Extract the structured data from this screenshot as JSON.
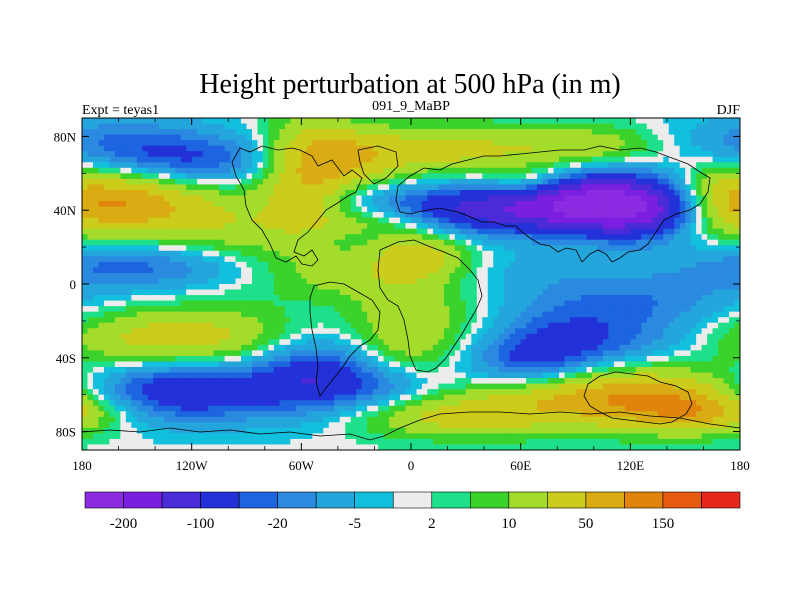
{
  "chart_data": {
    "type": "heatmap",
    "title": "Height perturbation at 500 hPa (in m)",
    "left_label": "Expt = teyas1",
    "center_label": "091_9_MaBP",
    "right_label": "DJF",
    "x_range": [
      -180,
      180
    ],
    "y_range": [
      -90,
      90
    ],
    "x_ticks": [
      {
        "value": -180,
        "label": "180"
      },
      {
        "value": -120,
        "label": "120W"
      },
      {
        "value": -60,
        "label": "60W"
      },
      {
        "value": 0,
        "label": "0"
      },
      {
        "value": 60,
        "label": "60E"
      },
      {
        "value": 120,
        "label": "120E"
      },
      {
        "value": 180,
        "label": "180"
      }
    ],
    "y_ticks": [
      {
        "value": 80,
        "label": "80N"
      },
      {
        "value": 40,
        "label": "40N"
      },
      {
        "value": 0,
        "label": "0"
      },
      {
        "value": -40,
        "label": "40S"
      },
      {
        "value": -80,
        "label": "80S"
      }
    ],
    "colorbar": {
      "bin_colors": [
        "#8a2be2",
        "#7a1ee0",
        "#4b2bd8",
        "#2331d8",
        "#1c64e0",
        "#2a8ae0",
        "#24a6dc",
        "#12c0de",
        "#ececec",
        "#1ee08a",
        "#3cd22c",
        "#a4dc2c",
        "#cccc1c",
        "#d8ac12",
        "#e0840c",
        "#e65a10",
        "#e6281a"
      ],
      "tick_labels": [
        {
          "boundary": 1,
          "label": "-200"
        },
        {
          "boundary": 3,
          "label": "-100"
        },
        {
          "boundary": 5,
          "label": "-20"
        },
        {
          "boundary": 7,
          "label": "-5"
        },
        {
          "boundary": 9,
          "label": "2"
        },
        {
          "boundary": 11,
          "label": "10"
        },
        {
          "boundary": 13,
          "label": "50"
        },
        {
          "boundary": 15,
          "label": "150"
        }
      ]
    },
    "field_levels": [
      -5.2,
      -4,
      -3,
      -2,
      -1.5,
      -1,
      -0.45,
      -0.12,
      0.12,
      0.45,
      0.9,
      1.6,
      2.5,
      3.3,
      4.2,
      5.5
    ],
    "field_blobs": [
      {
        "lon": -157,
        "lat": 45,
        "amp": 3.2,
        "slon": 32,
        "slat": 14
      },
      {
        "lon": -95,
        "lat": 30,
        "amp": 1.2,
        "slon": 30,
        "slat": 16
      },
      {
        "lon": -125,
        "lat": 66,
        "amp": -2.2,
        "slon": 40,
        "slat": 10
      },
      {
        "lon": -165,
        "lat": 78,
        "amp": -1.2,
        "slon": 40,
        "slat": 10
      },
      {
        "lon": -58,
        "lat": 58,
        "amp": 2.2,
        "slon": 18,
        "slat": 22
      },
      {
        "lon": -35,
        "lat": 68,
        "amp": 1.6,
        "slon": 22,
        "slat": 12
      },
      {
        "lon": 20,
        "lat": 72,
        "amp": 1.8,
        "slon": 45,
        "slat": 10
      },
      {
        "lon": 100,
        "lat": 75,
        "amp": 1.2,
        "slon": 30,
        "slat": 8
      },
      {
        "lon": 45,
        "lat": 40,
        "amp": -3.5,
        "slon": 50,
        "slat": 10
      },
      {
        "lon": 125,
        "lat": 42,
        "amp": -4.5,
        "slon": 30,
        "slat": 12
      },
      {
        "lon": 90,
        "lat": 48,
        "amp": -1.8,
        "slon": 25,
        "slat": 10
      },
      {
        "lon": 165,
        "lat": 45,
        "amp": 2.0,
        "slon": 20,
        "slat": 14
      },
      {
        "lon": 65,
        "lat": 55,
        "amp": 1.2,
        "slon": 15,
        "slat": 6
      },
      {
        "lon": -20,
        "lat": 34,
        "amp": 1.4,
        "slon": 25,
        "slat": 6
      },
      {
        "lon": 5,
        "lat": 17,
        "amp": 2.0,
        "slon": 20,
        "slat": 10
      },
      {
        "lon": -150,
        "lat": 10,
        "amp": -1.8,
        "slon": 45,
        "slat": 9
      },
      {
        "lon": -40,
        "lat": 5,
        "amp": 1.0,
        "slon": 30,
        "slat": 10
      },
      {
        "lon": 120,
        "lat": -8,
        "amp": -1.3,
        "slon": 45,
        "slat": 10
      },
      {
        "lon": 70,
        "lat": 8,
        "amp": -0.5,
        "slon": 30,
        "slat": 8
      },
      {
        "lon": -130,
        "lat": -30,
        "amp": 2.3,
        "slon": 55,
        "slat": 12
      },
      {
        "lon": -130,
        "lat": -58,
        "amp": -3.3,
        "slon": 40,
        "slat": 12
      },
      {
        "lon": -55,
        "lat": -48,
        "amp": -2.3,
        "slon": 25,
        "slat": 15
      },
      {
        "lon": 0,
        "lat": -28,
        "amp": 2.2,
        "slon": 22,
        "slat": 20
      },
      {
        "lon": 40,
        "lat": -28,
        "amp": 1.2,
        "slon": 20,
        "slat": 12
      },
      {
        "lon": 80,
        "lat": -30,
        "amp": -2.3,
        "slon": 60,
        "slat": 12
      },
      {
        "lon": 65,
        "lat": -45,
        "amp": -2.0,
        "slon": 25,
        "slat": 10
      },
      {
        "lon": 110,
        "lat": -60,
        "amp": 3.2,
        "slon": 60,
        "slat": 12
      },
      {
        "lon": 20,
        "lat": -72,
        "amp": 1.5,
        "slon": 40,
        "slat": 8
      },
      {
        "lon": -10,
        "lat": -55,
        "amp": -1.8,
        "slon": 30,
        "slat": 10
      },
      {
        "lon": 160,
        "lat": -70,
        "amp": 2.0,
        "slon": 30,
        "slat": 8
      }
    ]
  }
}
